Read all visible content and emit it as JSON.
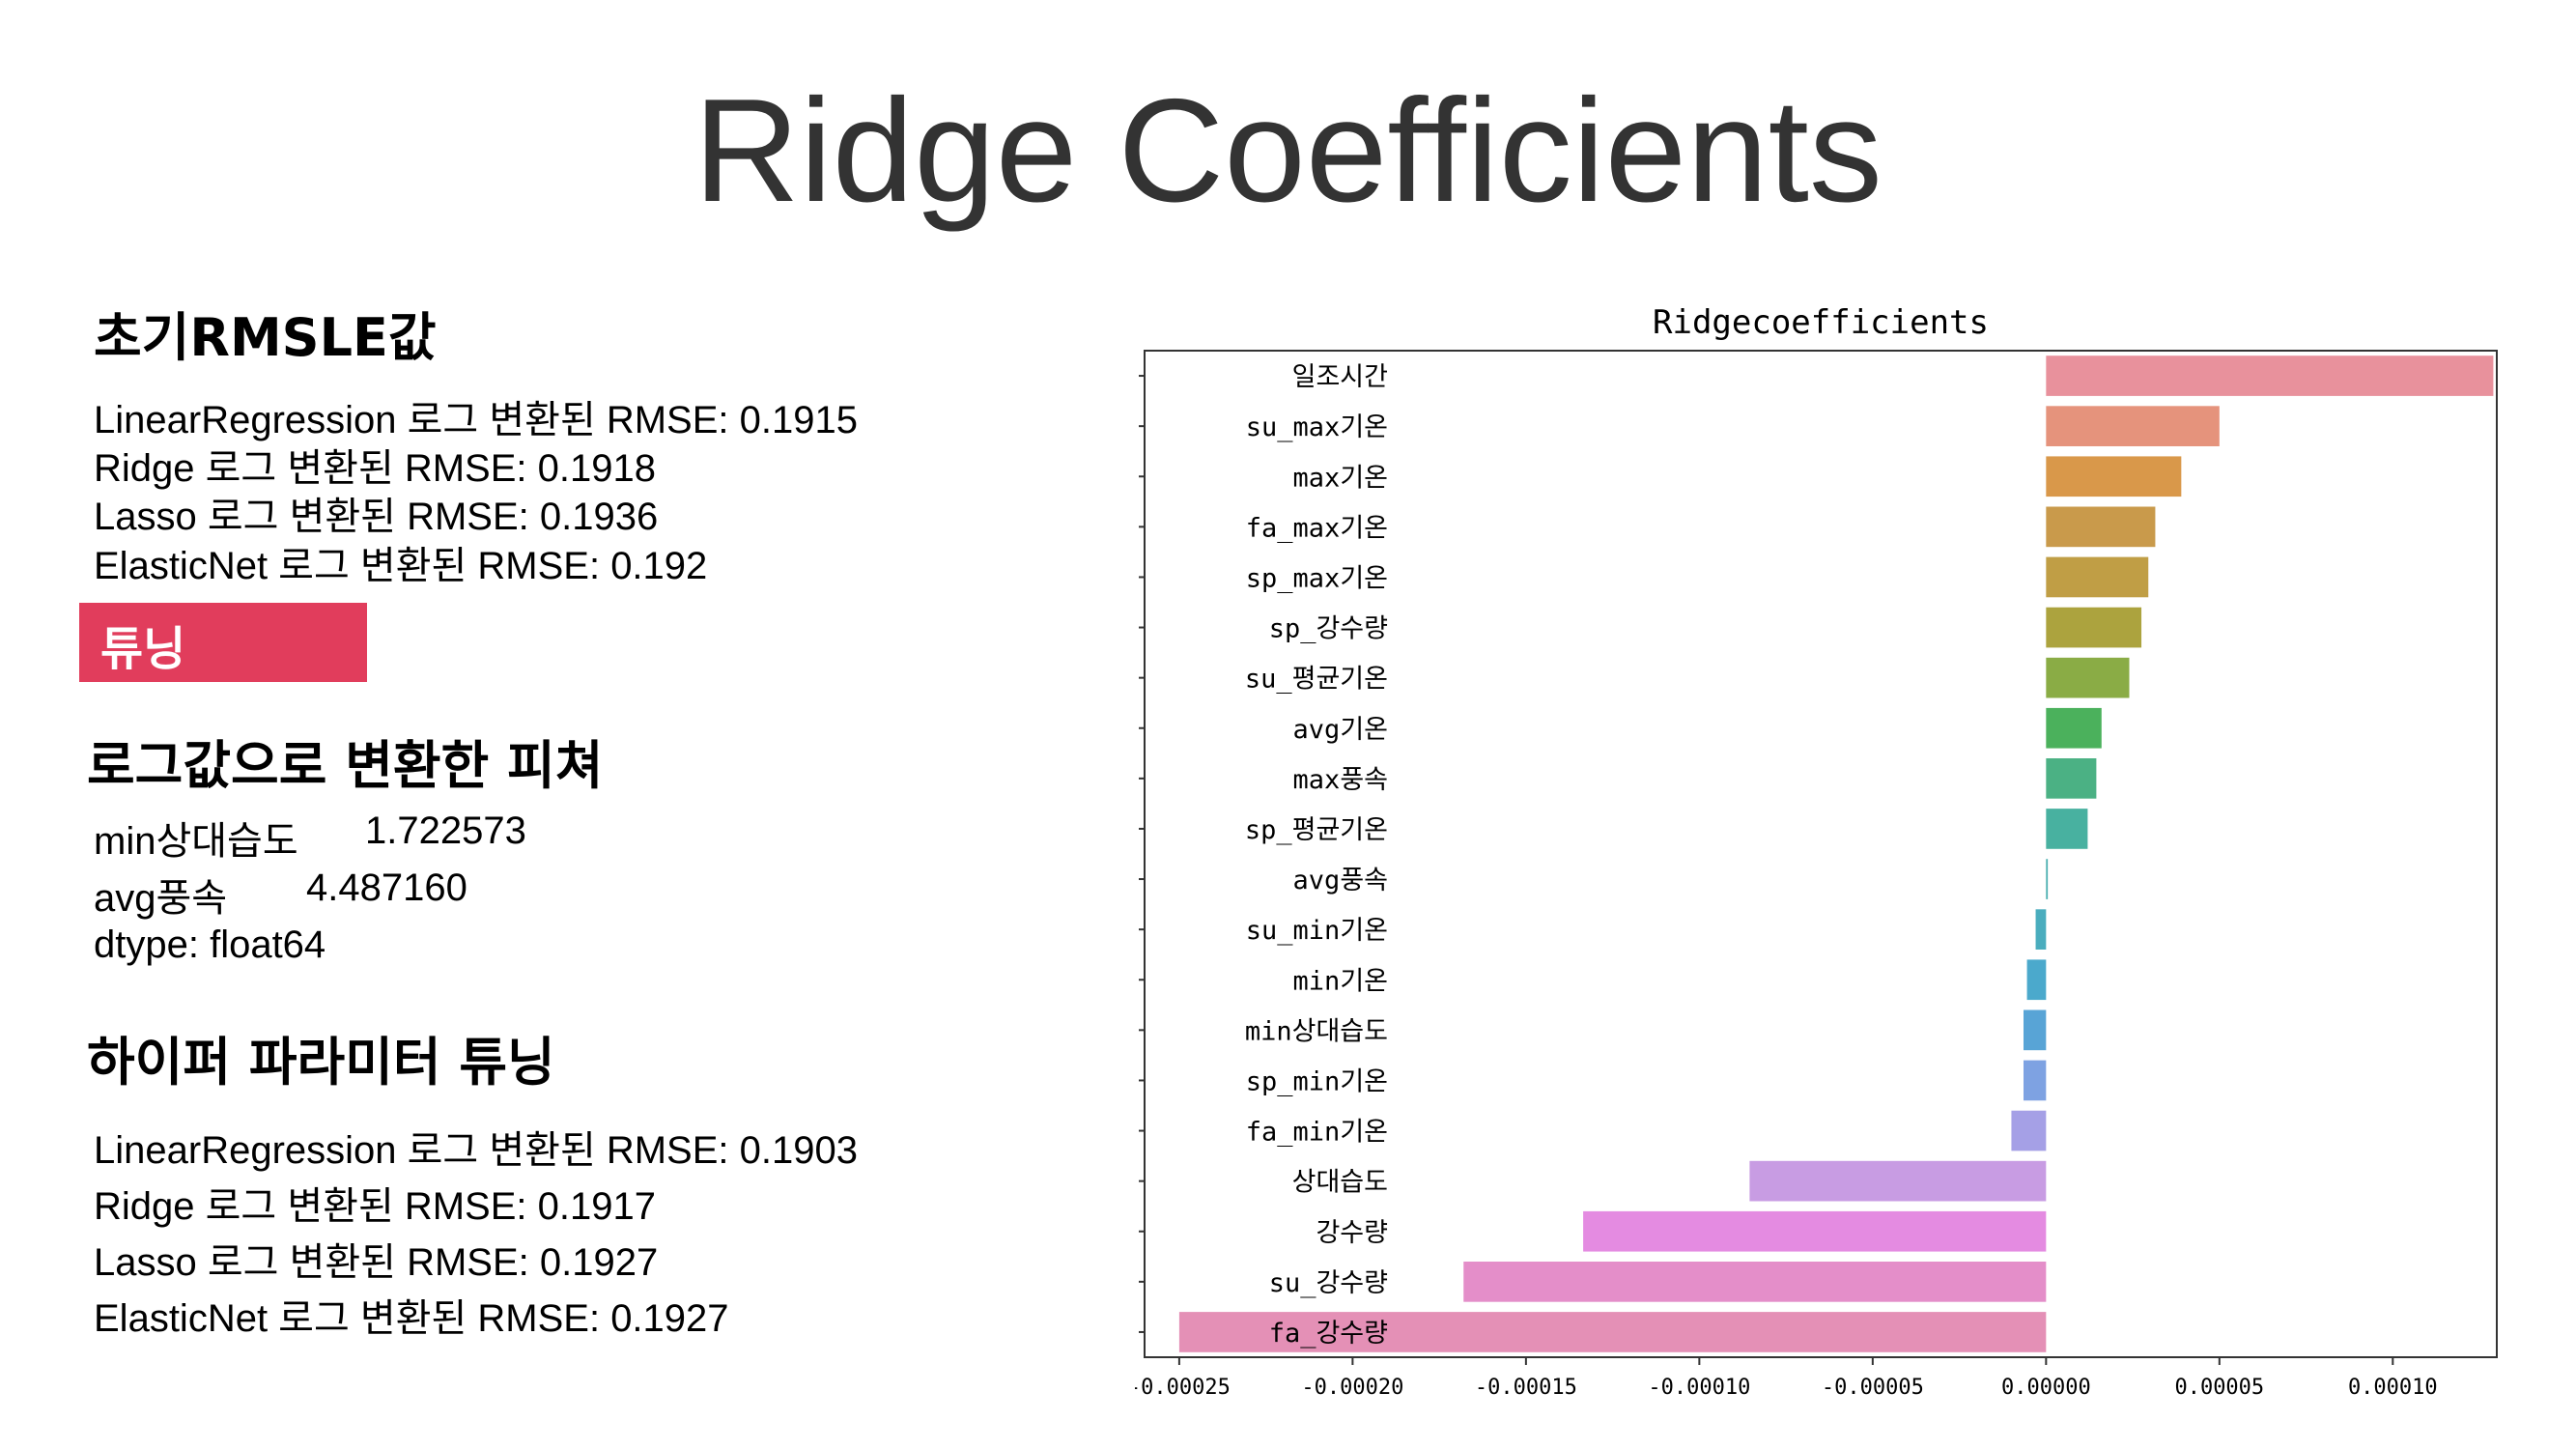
{
  "slide": {
    "title": "Ridge Coefficients"
  },
  "left": {
    "initial": {
      "heading": "초기RMSLE값",
      "lines": [
        "LinearRegression 로그 변환된 RMSE: 0.1915",
        "Ridge 로그 변환된 RMSE: 0.1918",
        "Lasso 로그 변환된 RMSE: 0.1936",
        "ElasticNet 로그 변환된 RMSE: 0.192"
      ]
    },
    "tag": "튜닝",
    "log_features": {
      "heading": "로그값으로 변환한 피쳐",
      "rows": [
        {
          "name": "min상대습도",
          "value": "1.722573"
        },
        {
          "name": "avg풍속",
          "value": "4.487160"
        }
      ],
      "dtype": "dtype: float64"
    },
    "tuning": {
      "heading": "하이퍼 파라미터 튜닝",
      "lines": [
        "LinearRegression 로그 변환된 RMSE: 0.1903",
        "Ridge 로그 변환된 RMSE: 0.1917",
        "Lasso 로그 변환된 RMSE: 0.1927",
        "ElasticNet 로그 변환된 RMSE: 0.1927"
      ]
    }
  },
  "chart_data": {
    "type": "bar",
    "orientation": "horizontal",
    "title": "Ridgecoefficients",
    "xlabel": "",
    "ylabel": "",
    "xlim": [
      -0.00026,
      0.00013
    ],
    "xticks": [
      -0.00025,
      -0.0002,
      -0.00015,
      -0.0001,
      -5e-05,
      0.0,
      5e-05,
      0.0001
    ],
    "xtick_labels": [
      "-0.00025",
      "-0.00020",
      "-0.00015",
      "-0.00010",
      "-0.00005",
      "0.00000",
      "0.00005",
      "0.00010"
    ],
    "grid": false,
    "categories": [
      "일조시간",
      "su_max기온",
      "max기온",
      "fa_max기온",
      "sp_max기온",
      "sp_강수량",
      "su_평균기온",
      "avg기온",
      "max풍속",
      "sp_평균기온",
      "avg풍속",
      "su_min기온",
      "min기온",
      "min상대습도",
      "sp_min기온",
      "fa_min기온",
      "상대습도",
      "강수량",
      "su_강수량",
      "fa_강수량"
    ],
    "values": [
      0.000129,
      5e-05,
      3.9e-05,
      3.15e-05,
      2.95e-05,
      2.75e-05,
      2.4e-05,
      1.6e-05,
      1.45e-05,
      1.2e-05,
      5e-07,
      -3e-06,
      -5.5e-06,
      -6.5e-06,
      -6.5e-06,
      -1e-05,
      -8.55e-05,
      -0.0001335,
      -0.000168,
      -0.00025
    ],
    "colors": [
      "#e8919c",
      "#e5937c",
      "#d9984a",
      "#c99a4b",
      "#c09e45",
      "#aca33e",
      "#8aac45",
      "#4bb15c",
      "#4bb184",
      "#48b1a0",
      "#4aafb0",
      "#4aadbe",
      "#4ba9cc",
      "#58a4d6",
      "#7ea2e2",
      "#a5a0e6",
      "#c89ce3",
      "#e48be1",
      "#e48ec9",
      "#e490b6"
    ]
  }
}
